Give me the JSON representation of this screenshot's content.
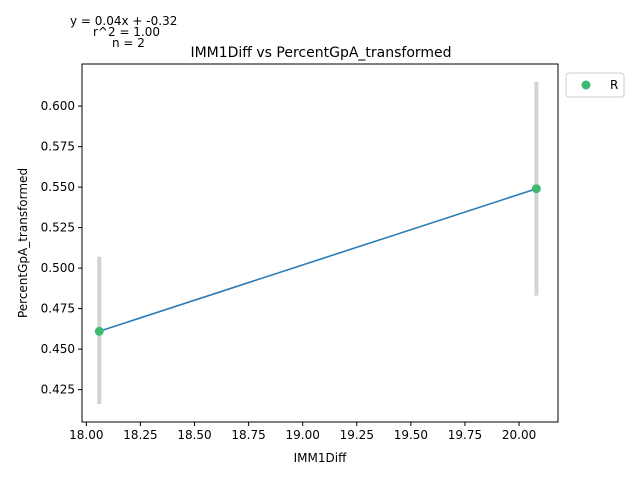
{
  "chart_data": {
    "type": "scatter",
    "title": "IMM1Diff vs PercentGpA_transformed",
    "xlabel": "IMM1Diff",
    "ylabel": "PercentGpA_transformed",
    "xlim": [
      17.98,
      20.18
    ],
    "ylim": [
      0.405,
      0.626
    ],
    "x_ticks": [
      "18.00",
      "18.25",
      "18.50",
      "18.75",
      "19.00",
      "19.25",
      "19.50",
      "19.75",
      "20.00"
    ],
    "y_ticks": [
      "0.425",
      "0.450",
      "0.475",
      "0.500",
      "0.525",
      "0.550",
      "0.575",
      "0.600"
    ],
    "series": [
      {
        "name": "R",
        "color": "#3dba70",
        "points": [
          {
            "x": 18.06,
            "y": 0.461,
            "err_low": 0.416,
            "err_high": 0.507
          },
          {
            "x": 20.08,
            "y": 0.549,
            "err_low": 0.483,
            "err_high": 0.615
          }
        ]
      }
    ],
    "fit_line": {
      "color": "#2c7bb6",
      "x": [
        18.06,
        20.08
      ],
      "y": [
        0.461,
        0.549
      ]
    },
    "errorbar_color": "#d3d3d3",
    "annotations": [
      "y = 0.04x + -0.32",
      "r^2 = 1.00",
      "n = 2"
    ],
    "legend": {
      "position": "right-top"
    },
    "grid": false
  }
}
